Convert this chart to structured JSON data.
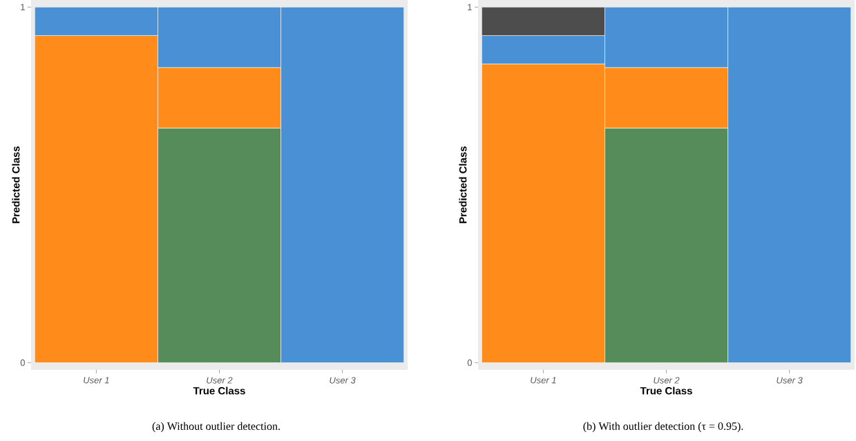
{
  "chart_data": [
    {
      "type": "bar",
      "stacked": true,
      "categories": [
        "User 1",
        "User 2",
        "User 3"
      ],
      "xlabel": "True Class",
      "ylabel": "Predicted Class",
      "ylim": [
        -0.02,
        1.02
      ],
      "yticks": [
        0,
        1
      ],
      "annotations": [
        "(a) Without outlier detection."
      ],
      "series": [
        {
          "color": "#568c5a",
          "values": [
            null,
            0.66,
            null
          ]
        },
        {
          "color": "#ff8c1a",
          "values": [
            0.92,
            0.17,
            null
          ]
        },
        {
          "color": "#4a90d4",
          "values": [
            0.08,
            0.17,
            1
          ]
        }
      ]
    },
    {
      "type": "bar",
      "stacked": true,
      "categories": [
        "User 1",
        "User 2",
        "User 3"
      ],
      "xlabel": "True Class",
      "ylabel": "Predicted Class",
      "ylim": [
        -0.02,
        1.02
      ],
      "yticks": [
        0,
        1
      ],
      "annotations": [
        "(b) With outlier detection (τ = 0.95)."
      ],
      "series": [
        {
          "color": "#568c5a",
          "values": [
            null,
            0.66,
            null
          ]
        },
        {
          "color": "#ff8c1a",
          "values": [
            0.84,
            0.17,
            null
          ]
        },
        {
          "color": "#4a90d4",
          "values": [
            0.08,
            0.17,
            1
          ]
        },
        {
          "color": "#4d4d4d",
          "values": [
            0.08,
            null,
            null
          ]
        }
      ]
    }
  ]
}
